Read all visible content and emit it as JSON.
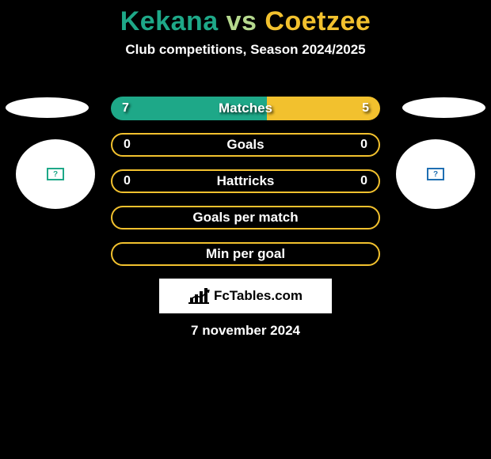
{
  "background_color": "#000000",
  "title": {
    "left": "Kekana",
    "vs": "vs",
    "right": "Coetzee",
    "left_color": "#1ea888",
    "vs_color": "#b6d98e",
    "right_color": "#f2c12e",
    "fontsize": 34
  },
  "subtitle": "Club competitions, Season 2024/2025",
  "player_left": {
    "accent": "#1ea888",
    "badge_border": "#1ea888",
    "badge_glyph": "?"
  },
  "player_right": {
    "accent": "#f2c12e",
    "badge_border": "#1f6fb2",
    "badge_glyph": "?"
  },
  "bars": [
    {
      "label": "Matches",
      "left_val": "7",
      "right_val": "5",
      "left_frac": 0.58,
      "right_frac": 0.42,
      "style": "filled"
    },
    {
      "label": "Goals",
      "left_val": "0",
      "right_val": "0",
      "left_frac": 0,
      "right_frac": 0,
      "style": "outline"
    },
    {
      "label": "Hattricks",
      "left_val": "0",
      "right_val": "0",
      "left_frac": 0,
      "right_frac": 0,
      "style": "outline"
    },
    {
      "label": "Goals per match",
      "left_val": "",
      "right_val": "",
      "left_frac": 0,
      "right_frac": 0,
      "style": "outline"
    },
    {
      "label": "Min per goal",
      "left_val": "",
      "right_val": "",
      "left_frac": 0,
      "right_frac": 0,
      "style": "outline"
    }
  ],
  "bar_left_color": "#1ea888",
  "bar_right_color": "#f2c12e",
  "bar_outline_color": "#f2c12e",
  "logo_text": "FcTables.com",
  "date": "7 november 2024"
}
